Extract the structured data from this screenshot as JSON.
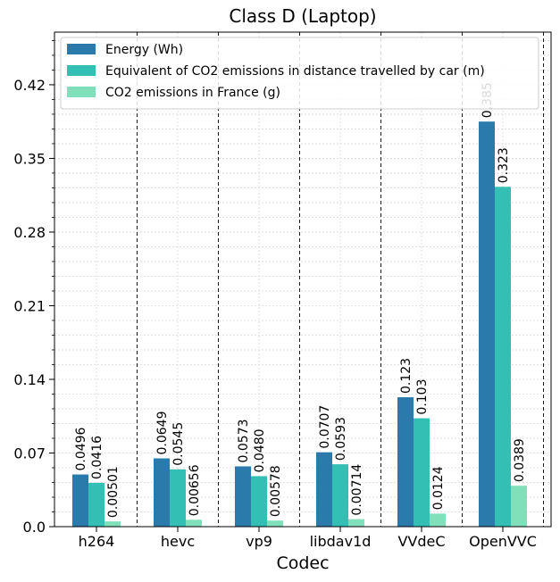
{
  "chart_data": {
    "type": "bar",
    "title": "Class D (Laptop)",
    "xlabel": "Codec",
    "ylabel": "",
    "categories": [
      "h264",
      "hevc",
      "vp9",
      "libdav1d",
      "VVdeC",
      "OpenVVC"
    ],
    "series": [
      {
        "name": "Energy (Wh)",
        "color": "#2a7bab",
        "values": [
          0.0496,
          0.0649,
          0.0573,
          0.0707,
          0.123,
          0.385
        ],
        "labels": [
          "0.0496",
          "0.0649",
          "0.0573",
          "0.0707",
          "0.123",
          "0.385"
        ]
      },
      {
        "name": "Equivalent of CO2 emissions in distance travelled by car (m)",
        "color": "#33bfb4",
        "values": [
          0.0416,
          0.0545,
          0.048,
          0.0593,
          0.103,
          0.323
        ],
        "labels": [
          "0.0416",
          "0.0545",
          "0.0480",
          "0.0593",
          "0.103",
          "0.323"
        ]
      },
      {
        "name": "CO2 emissions in France (g)",
        "color": "#7fe0b9",
        "values": [
          0.00501,
          0.00656,
          0.00578,
          0.00714,
          0.0124,
          0.0389
        ],
        "labels": [
          "0.00501",
          "0.00656",
          "0.00578",
          "0.00714",
          "0.0124",
          "0.0389"
        ]
      }
    ],
    "yticks": [
      "0.0",
      "0.07",
      "0.14",
      "0.21",
      "0.28",
      "0.35",
      "0.42"
    ],
    "ylim": [
      0,
      0.47
    ],
    "grid": true,
    "legend_position": "top-left"
  }
}
